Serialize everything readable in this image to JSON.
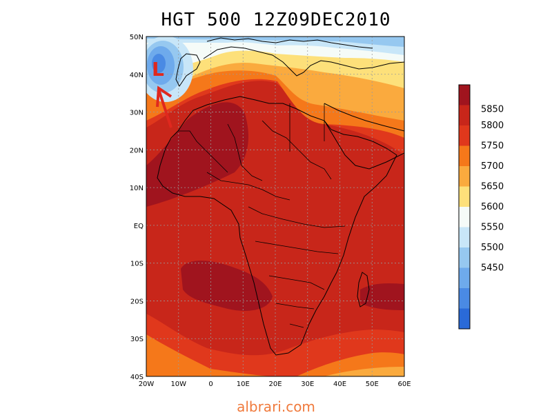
{
  "title": "HGT 500 12Z09DEC2010",
  "watermark": "albrari.com",
  "map": {
    "extent": {
      "lon": [
        -20,
        60
      ],
      "lat": [
        -40,
        50
      ]
    },
    "lat_ticks": [
      {
        "value": 50,
        "label": "50N"
      },
      {
        "value": 40,
        "label": "40N"
      },
      {
        "value": 30,
        "label": "30N"
      },
      {
        "value": 20,
        "label": "20N"
      },
      {
        "value": 10,
        "label": "10N"
      },
      {
        "value": 0,
        "label": "EQ"
      },
      {
        "value": -10,
        "label": "10S"
      },
      {
        "value": -20,
        "label": "20S"
      },
      {
        "value": -30,
        "label": "30S"
      },
      {
        "value": -40,
        "label": "40S"
      }
    ],
    "lon_ticks": [
      {
        "value": -20,
        "label": "20W"
      },
      {
        "value": -10,
        "label": "10W"
      },
      {
        "value": 0,
        "label": "0"
      },
      {
        "value": 10,
        "label": "10E"
      },
      {
        "value": 20,
        "label": "20E"
      },
      {
        "value": 30,
        "label": "30E"
      },
      {
        "value": 40,
        "label": "40E"
      },
      {
        "value": 50,
        "label": "50E"
      },
      {
        "value": 60,
        "label": "60E"
      }
    ],
    "annotation_letter": "L",
    "annotation_color": "#e0281e"
  },
  "colorbar": {
    "labels": [
      "5850",
      "5800",
      "5750",
      "5700",
      "5650",
      "5600",
      "5550",
      "5500",
      "5450"
    ],
    "colors": [
      "#a0141e",
      "#c8261a",
      "#e0381c",
      "#f5781a",
      "#faaa3e",
      "#fde07a",
      "#f5fbf8",
      "#c8e6f8",
      "#96c8f0",
      "#6eaaec",
      "#4a8ae4",
      "#2a6ad8"
    ]
  }
}
